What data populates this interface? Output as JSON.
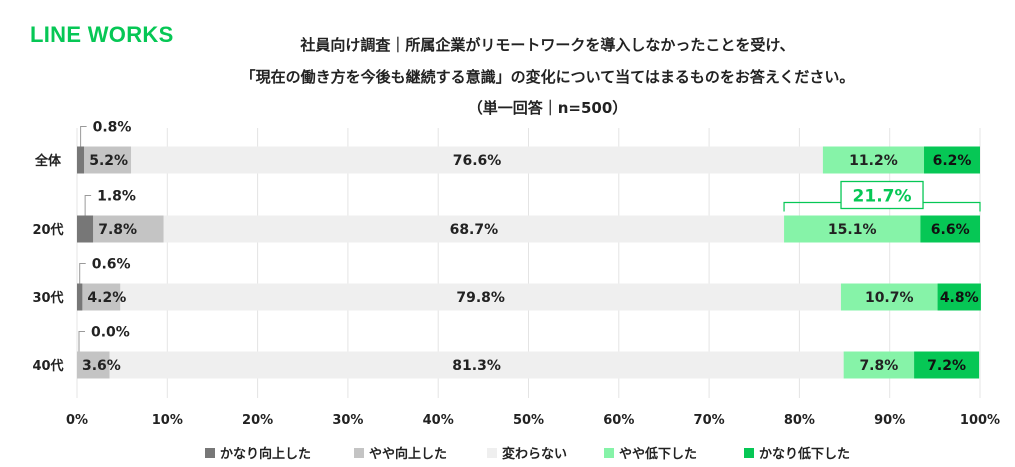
{
  "brand": {
    "logo_text": "LINE WORKS",
    "logo_color": "#06C755"
  },
  "chart_data": {
    "type": "bar",
    "orientation": "horizontal",
    "stacked": true,
    "title_lines": [
      "社員向け調査｜所属企業がリモートワークを導入しなかったことを受け、",
      "「現在の働き方を今後も継続する意識」の変化について当てはまるものをお答えください。",
      "（単一回答｜n=500）"
    ],
    "categories": [
      "全体",
      "20代",
      "30代",
      "40代"
    ],
    "series": [
      {
        "name": "かなり向上した",
        "color": "#777777",
        "values": [
          0.8,
          1.8,
          0.6,
          0.0
        ]
      },
      {
        "name": "やや向上した",
        "color": "#C4C4C4",
        "values": [
          5.2,
          7.8,
          4.2,
          3.6
        ]
      },
      {
        "name": "変わらない",
        "color": "#EFEFEF",
        "values": [
          76.6,
          68.7,
          79.8,
          81.3
        ]
      },
      {
        "name": "やや低下した",
        "color": "#86F3A8",
        "values": [
          11.2,
          15.1,
          10.7,
          7.8
        ]
      },
      {
        "name": "かなり低下した",
        "color": "#06C755",
        "values": [
          6.2,
          6.6,
          4.8,
          7.2
        ]
      }
    ],
    "value_labels": [
      [
        "0.8%",
        "5.2%",
        "76.6%",
        "11.2%",
        "6.2%"
      ],
      [
        "1.8%",
        "7.8%",
        "68.7%",
        "15.1%",
        "6.6%"
      ],
      [
        "0.6%",
        "4.2%",
        "79.8%",
        "10.7%",
        "4.8%"
      ],
      [
        "0.0%",
        "3.6%",
        "81.3%",
        "7.8%",
        "7.2%"
      ]
    ],
    "annotation": {
      "category": "20代",
      "text": "21.7%",
      "color": "#06C755"
    },
    "xlim": [
      0,
      100
    ],
    "xticks": [
      "0%",
      "10%",
      "20%",
      "30%",
      "40%",
      "50%",
      "60%",
      "70%",
      "80%",
      "90%",
      "100%"
    ],
    "grid": true,
    "legend_position": "bottom"
  }
}
